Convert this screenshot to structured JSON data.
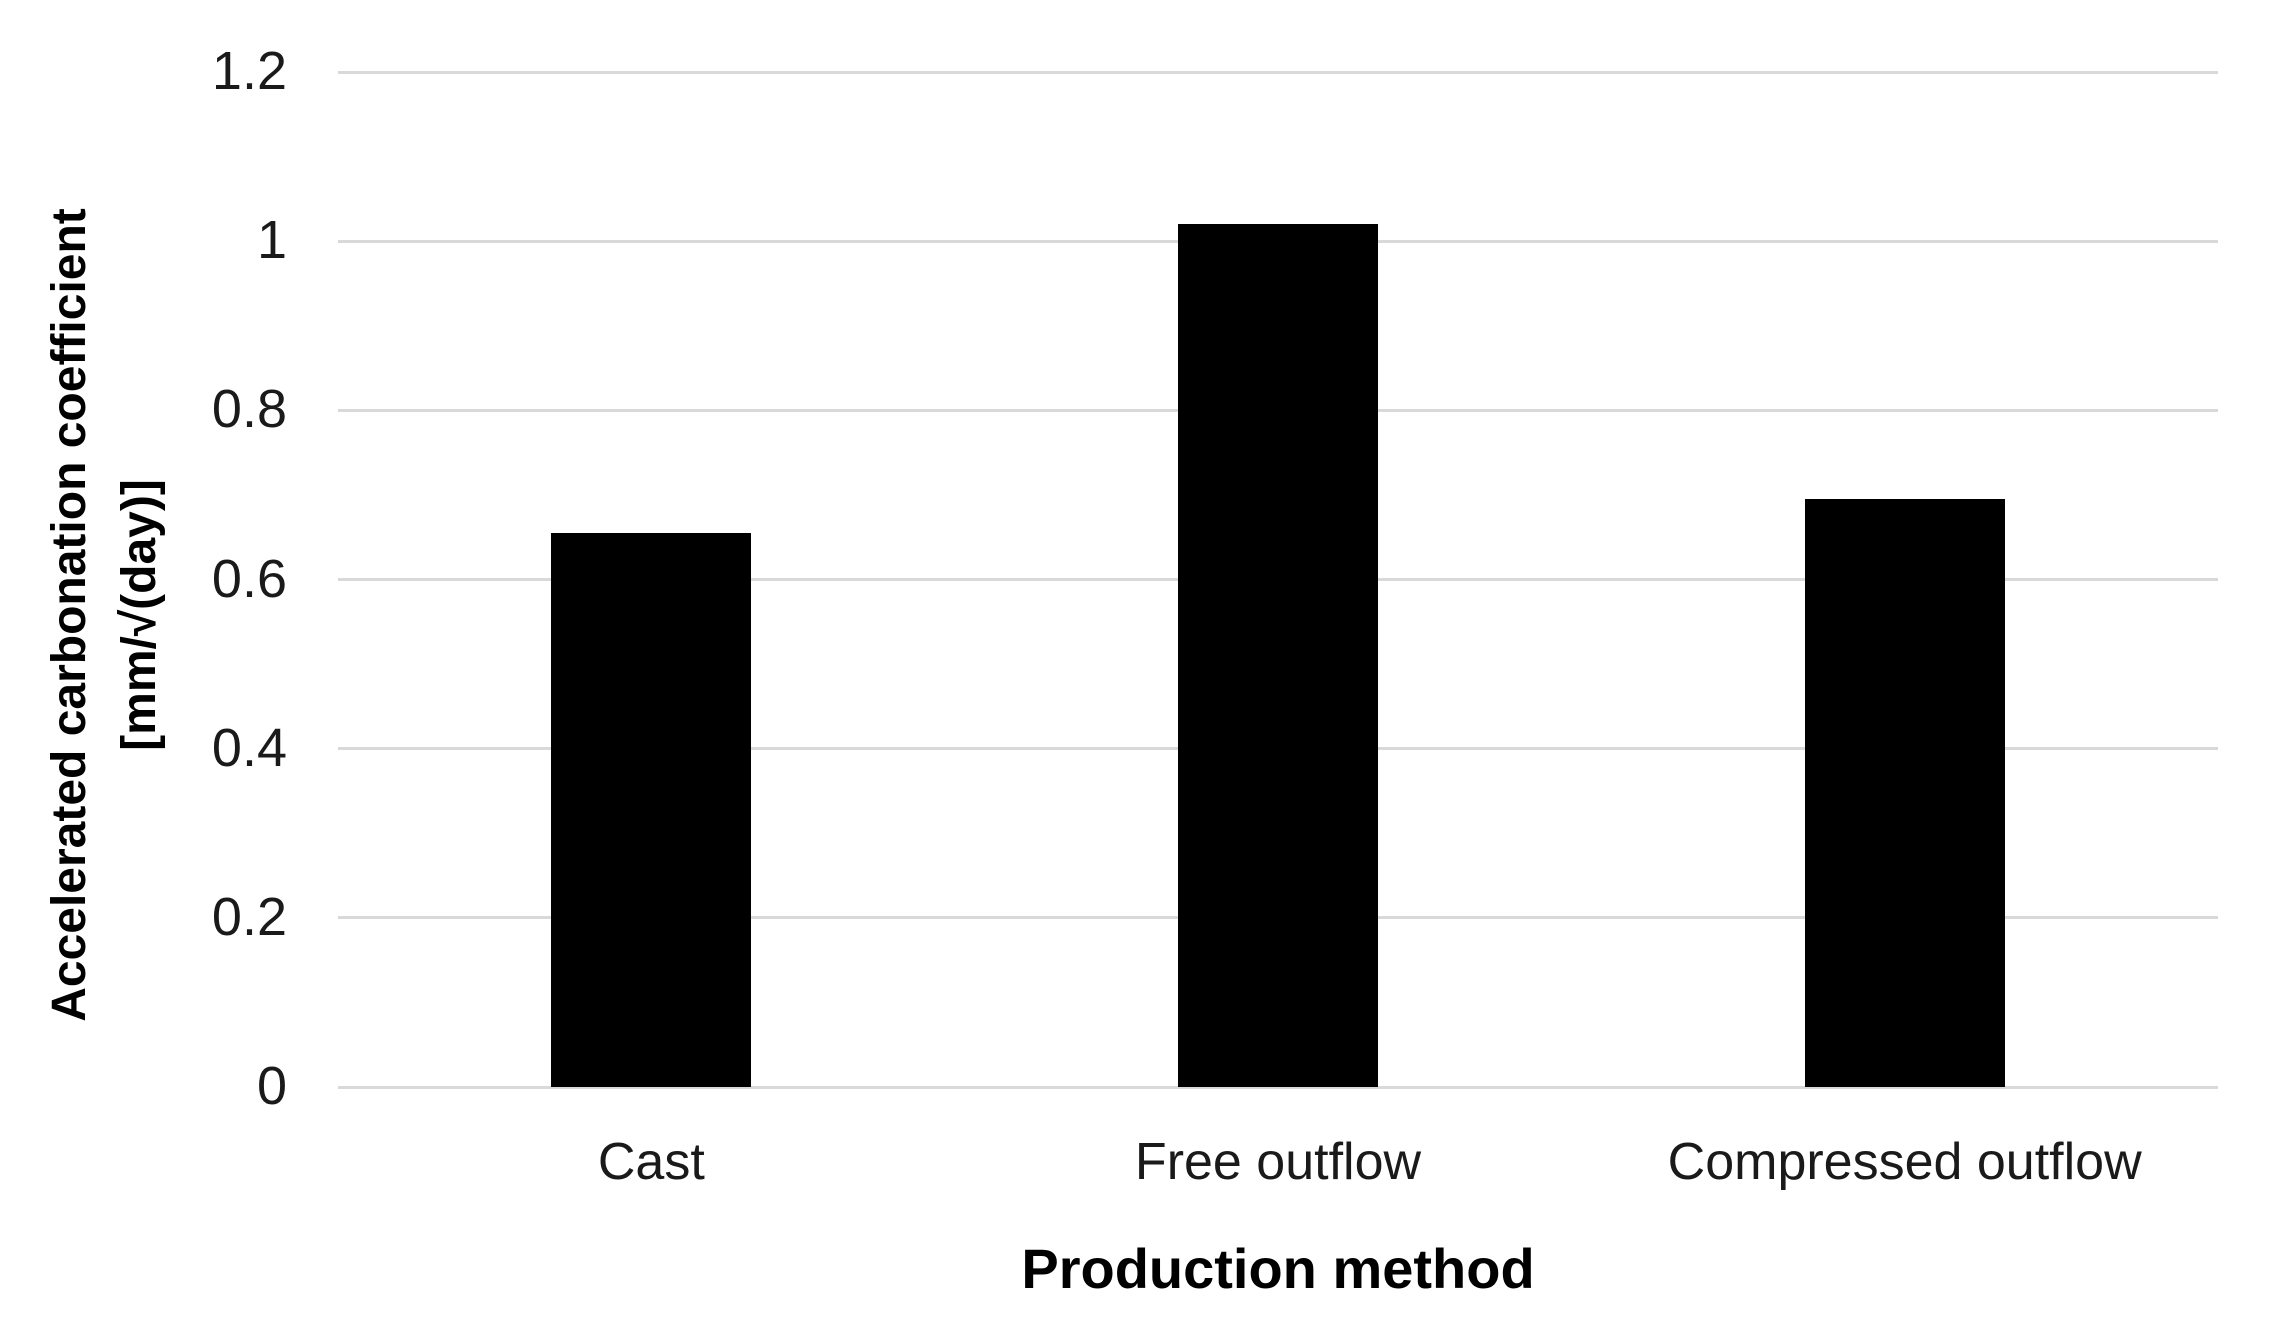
{
  "chart_data": {
    "type": "bar",
    "title": "",
    "categories": [
      "Cast",
      "Free outflow",
      "Compressed outflow"
    ],
    "values": [
      0.655,
      1.02,
      0.695
    ],
    "xlabel": "Production method",
    "ylabel": "Accelerated carbonation coefficient [mm/√(day)]",
    "ylabel_lines": [
      "Accelerated carbonation coefficient",
      "[mm/√(day)]"
    ],
    "y_ticks": [
      "0",
      "0.2",
      "0.4",
      "0.6",
      "0.8",
      "1",
      "1.2"
    ],
    "ylim": [
      0,
      1.2
    ],
    "grid": true,
    "legend": "none",
    "bar_color": "#000000",
    "gridline_color": "#d9d9d9",
    "text_color": "#1a1a1a",
    "background_color": "#ffffff"
  }
}
